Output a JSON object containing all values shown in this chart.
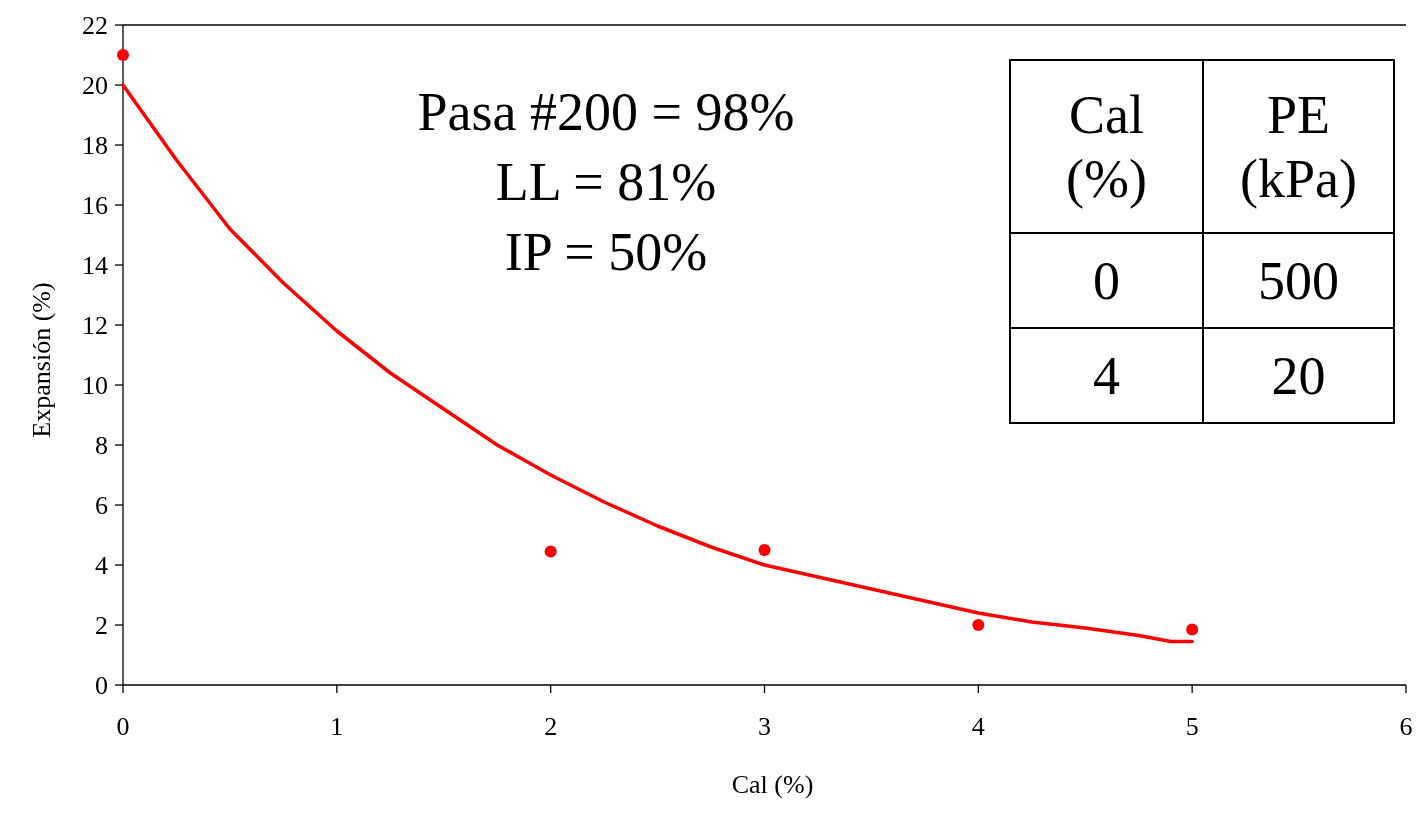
{
  "chart_data": {
    "type": "scatter",
    "xlabel": "Cal (%)",
    "ylabel": "Expansión (%)",
    "xlim": [
      0,
      6
    ],
    "xticks": [
      0,
      1,
      2,
      3,
      4,
      5,
      6
    ],
    "ylim": [
      0,
      22
    ],
    "yticks": [
      0,
      2,
      4,
      6,
      8,
      10,
      12,
      14,
      16,
      18,
      20,
      22
    ],
    "series": [
      {
        "type": "line",
        "color": "#ff0000",
        "marker": "none",
        "x": [
          0,
          0.25,
          0.5,
          0.75,
          1,
          1.25,
          1.5,
          1.75,
          2,
          2.25,
          2.5,
          2.75,
          3,
          3.25,
          3.5,
          3.75,
          4,
          4.25,
          4.5,
          4.75,
          4.9,
          5
        ],
        "values": [
          20,
          17.5,
          15.2,
          13.4,
          11.8,
          10.4,
          9.2,
          8.0,
          7.0,
          6.1,
          5.3,
          4.6,
          4.0,
          3.6,
          3.2,
          2.8,
          2.4,
          2.1,
          1.9,
          1.65,
          1.45,
          1.45
        ]
      },
      {
        "color": "#ff0000",
        "marker": "circle",
        "x": [
          0,
          2,
          3,
          4,
          5
        ],
        "values": [
          21,
          4.45,
          4.5,
          2,
          1.85
        ]
      }
    ],
    "annotations": [
      "Pasa #200 = 98%",
      "LL = 81%",
      "IP = 50%",
      "Cal (%)",
      "PE (kPa)",
      "0",
      "500",
      "4",
      "20"
    ]
  }
}
